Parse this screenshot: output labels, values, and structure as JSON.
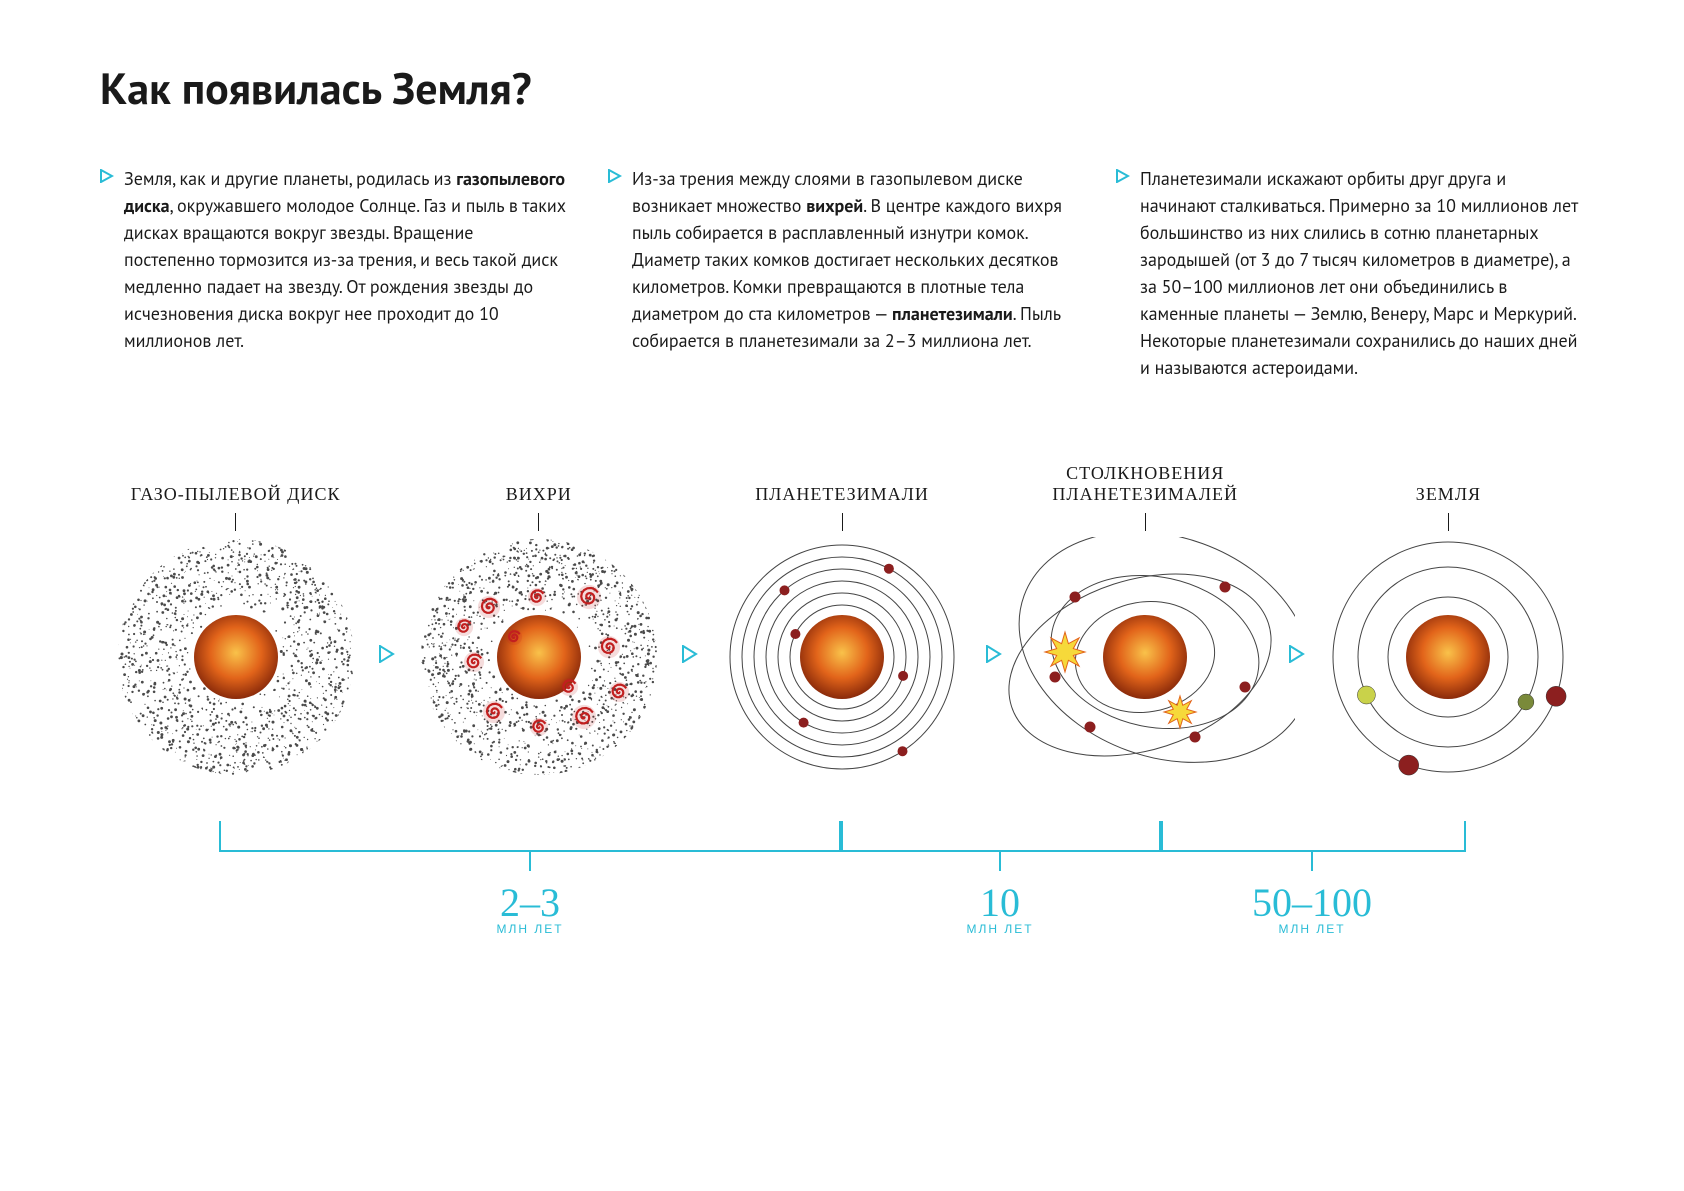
{
  "title": "Как появилась Земля?",
  "accent_color": "#29bcd6",
  "text_color": "#1a1a1a",
  "background_color": "#ffffff",
  "sun_gradient": [
    "#f6a72a",
    "#e2641a",
    "#b83d10"
  ],
  "dust_color": "#4a4a4a",
  "vortex_color": "#c21f1f",
  "orbit_color": "#444444",
  "planetesimal_color": "#8c1f1f",
  "collision_star_color": "#f6d93a",
  "columns": [
    {
      "html": "Земля, как и другие планеты, родилась из <b>газопылевого диска</b>, окружавшего молодое Солнце. Газ и пыль в таких дисках вращаются вокруг звезды. Вращение постепенно тормозится из-за трения, и весь такой диск медленно падает на звезду. От рождения звезды до исчезновения диска вокруг нее проходит до 10 миллионов лет."
    },
    {
      "html": "Из-за трения между слоями в газопылевом диске возникает множество <b>вихрей</b>. В центре каждого вихря пыль собирается в расплавленный изнутри комок. Диаметр таких комков достигает нескольких десятков километров. Комки превращаются в плотные тела диаметром до ста километров — <b>планетезимали</b>. Пыль собирается в планетезимали за 2–3 миллиона лет."
    },
    {
      "html": "Планетезимали искажают орбиты друг друга и начинают сталкиваться. Примерно за 10 миллионов лет большинство из них слились в сотню планетарных зародышей (от 3 до 7 тысяч километров в диаметре), а за 50–100 миллионов лет они объединились в каменные планеты — Землю, Венеру, Марс и Меркурий. Некоторые планетезимали сохранились до наших дней и называются астероидами."
    }
  ],
  "stages": [
    {
      "label": "ГАЗО-ПЫЛЕВОЙ ДИСК"
    },
    {
      "label": "ВИХРИ"
    },
    {
      "label": "ПЛАНЕТЕЗИМАЛИ"
    },
    {
      "label": "СТОЛКНОВЕНИЯ\nПЛАНЕТЕЗИМАЛЕЙ"
    },
    {
      "label": "ЗЕМЛЯ"
    }
  ],
  "timeline": [
    {
      "value": "2–3",
      "unit": "МЛН ЛЕТ",
      "from_stage": 0,
      "to_stage": 2
    },
    {
      "value": "10",
      "unit": "МЛН ЛЕТ",
      "from_stage": 2,
      "to_stage": 3
    },
    {
      "value": "50–100",
      "unit": "МЛН ЛЕТ",
      "from_stage": 3,
      "to_stage": 4
    }
  ],
  "stage5_planets": [
    {
      "r": 10,
      "fill": "#8c1f1f",
      "orbit": 115,
      "angle": 20
    },
    {
      "r": 9,
      "fill": "#c9d24a",
      "orbit": 90,
      "angle": 155
    },
    {
      "r": 8,
      "fill": "#7a8a3a",
      "orbit": 90,
      "angle": 30
    },
    {
      "r": 10,
      "fill": "#8c1f1f",
      "orbit": 115,
      "angle": 110
    }
  ]
}
